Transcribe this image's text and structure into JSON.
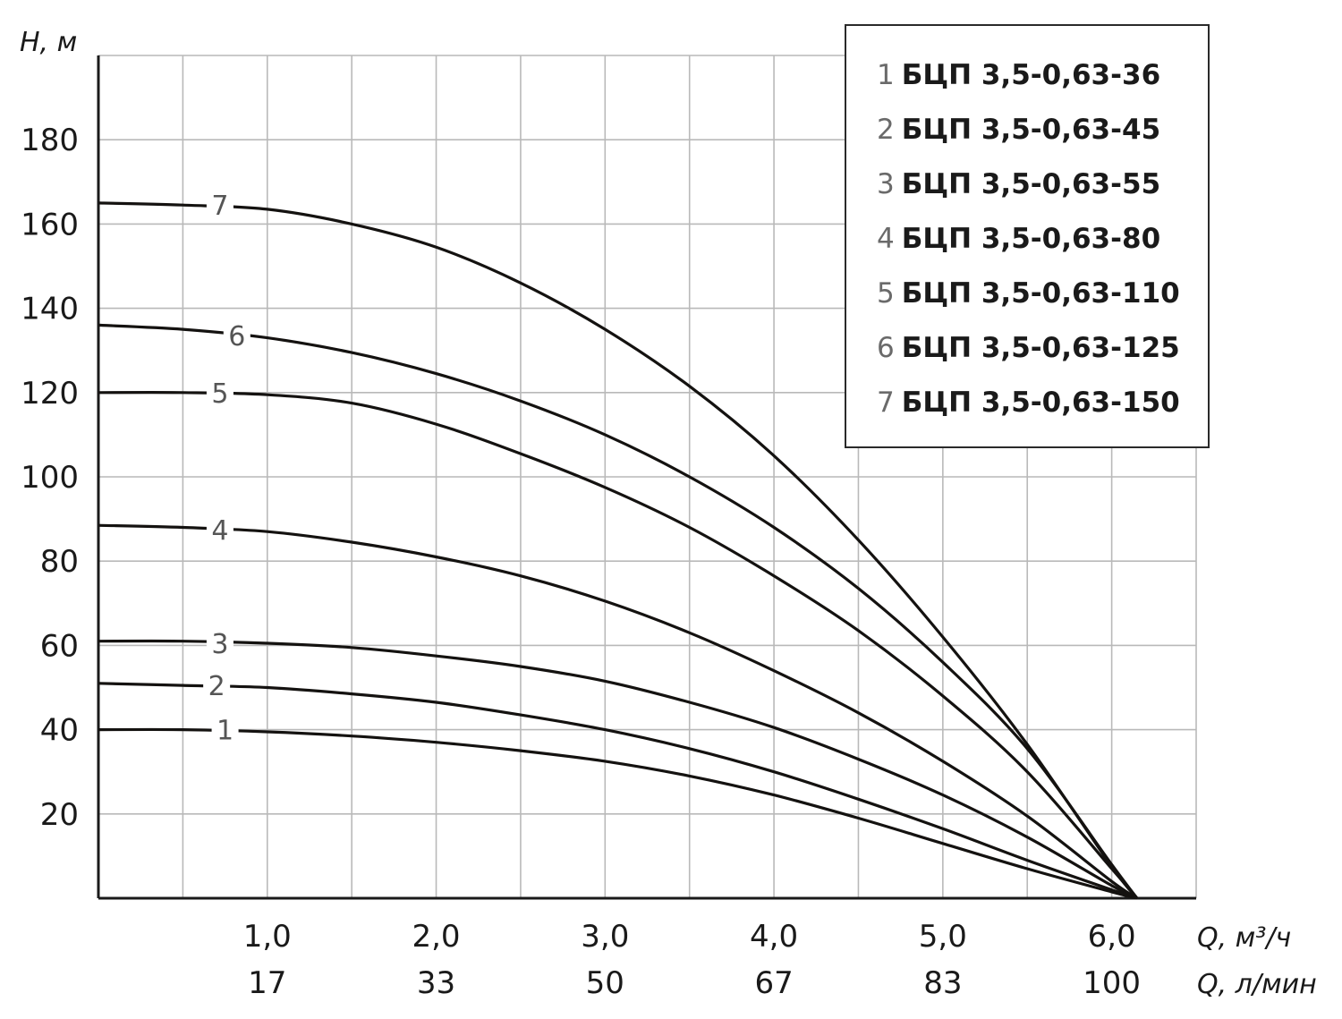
{
  "chart_data": {
    "type": "line",
    "ylabel": "H, м",
    "xlabel_primary": "Q, м³/ч",
    "xlabel_secondary": "Q, л/мин",
    "xlim": [
      0,
      6.5
    ],
    "ylim": [
      0,
      200
    ],
    "x_ticks": [
      {
        "value": 1.0,
        "label": "1,0",
        "label2": "17"
      },
      {
        "value": 2.0,
        "label": "2,0",
        "label2": "33"
      },
      {
        "value": 3.0,
        "label": "3,0",
        "label2": "50"
      },
      {
        "value": 4.0,
        "label": "4,0",
        "label2": "67"
      },
      {
        "value": 5.0,
        "label": "5,0",
        "label2": "83"
      },
      {
        "value": 6.0,
        "label": "6,0",
        "label2": "100"
      }
    ],
    "y_ticks": [
      {
        "value": 20,
        "label": "20"
      },
      {
        "value": 40,
        "label": "40"
      },
      {
        "value": 60,
        "label": "60"
      },
      {
        "value": 80,
        "label": "80"
      },
      {
        "value": 100,
        "label": "100"
      },
      {
        "value": 120,
        "label": "120"
      },
      {
        "value": 140,
        "label": "140"
      },
      {
        "value": 160,
        "label": "160"
      },
      {
        "value": 180,
        "label": "180"
      }
    ],
    "grid": true,
    "legend_position": "top-right",
    "series": [
      {
        "id": "1",
        "name": "БЦП 3,5-0,63-36",
        "x": [
          0,
          0.5,
          1.0,
          1.5,
          2.0,
          2.5,
          3.0,
          3.5,
          4.0,
          4.5,
          5.0,
          5.5,
          6.0,
          6.15
        ],
        "y": [
          40,
          40,
          39.5,
          38.5,
          37,
          35,
          32.5,
          29,
          24.5,
          19,
          13,
          7,
          1.5,
          0
        ],
        "label_x": 0.75,
        "label_y": 40
      },
      {
        "id": "2",
        "name": "БЦП 3,5-0,63-45",
        "x": [
          0,
          0.5,
          1.0,
          1.5,
          2.0,
          2.5,
          3.0,
          3.5,
          4.0,
          4.5,
          5.0,
          5.5,
          6.0,
          6.15
        ],
        "y": [
          51,
          50.5,
          50,
          48.5,
          46.5,
          43.5,
          40,
          35.5,
          30,
          23.5,
          16.5,
          9,
          2,
          0
        ],
        "label_x": 0.7,
        "label_y": 50.5
      },
      {
        "id": "3",
        "name": "БЦП 3,5-0,63-55",
        "x": [
          0,
          0.5,
          1.0,
          1.5,
          2.0,
          2.5,
          3.0,
          3.5,
          4.0,
          4.5,
          5.0,
          5.5,
          6.0,
          6.15
        ],
        "y": [
          61,
          61,
          60.5,
          59.5,
          57.5,
          55,
          51.5,
          46.5,
          40.5,
          33,
          24.5,
          14.5,
          3,
          0
        ],
        "label_x": 0.72,
        "label_y": 60.5
      },
      {
        "id": "4",
        "name": "БЦП 3,5-0,63-80",
        "x": [
          0,
          0.5,
          1.0,
          1.5,
          2.0,
          2.5,
          3.0,
          3.5,
          4.0,
          4.5,
          5.0,
          5.5,
          6.0,
          6.15
        ],
        "y": [
          88.5,
          88,
          87,
          84.5,
          81,
          76.5,
          70.5,
          63,
          54,
          44,
          32.5,
          19.5,
          4,
          0
        ],
        "label_x": 0.72,
        "label_y": 87.5
      },
      {
        "id": "5",
        "name": "БЦП 3,5-0,63-110",
        "x": [
          0,
          0.5,
          1.0,
          1.5,
          2.0,
          2.5,
          3.0,
          3.5,
          4.0,
          4.5,
          5.0,
          5.5,
          6.0,
          6.15
        ],
        "y": [
          120,
          120,
          119.5,
          117.5,
          112.5,
          105.5,
          97.5,
          88,
          76.5,
          63.5,
          48,
          30,
          7,
          0
        ],
        "label_x": 0.72,
        "label_y": 120
      },
      {
        "id": "6",
        "name": "БЦП 3,5-0,63-125",
        "x": [
          0,
          0.5,
          1.0,
          1.5,
          2.0,
          2.5,
          3.0,
          3.5,
          4.0,
          4.5,
          5.0,
          5.5,
          6.0,
          6.15
        ],
        "y": [
          136,
          135,
          133,
          129.5,
          124.5,
          118,
          110,
          100,
          88,
          73.5,
          56,
          35.5,
          8,
          0
        ],
        "label_x": 0.82,
        "label_y": 133.5
      },
      {
        "id": "7",
        "name": "БЦП 3,5-0,63-150",
        "x": [
          0,
          0.5,
          1.0,
          1.5,
          2.0,
          2.5,
          3.0,
          3.5,
          4.0,
          4.5,
          5.0,
          5.5,
          6.0,
          6.15
        ],
        "y": [
          165,
          164.5,
          163.5,
          160,
          154.5,
          146,
          135,
          121.5,
          105,
          85,
          62,
          36.5,
          7.5,
          0
        ],
        "label_x": 0.72,
        "label_y": 164.5
      }
    ]
  }
}
